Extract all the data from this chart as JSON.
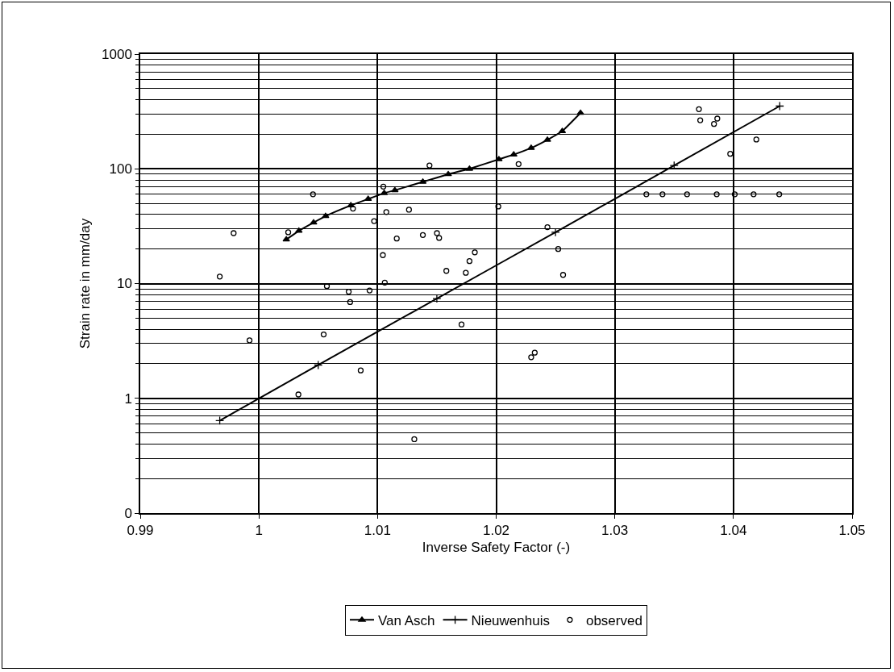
{
  "chart_data": {
    "type": "line",
    "xlabel": "Inverse Safety Factor (-)",
    "ylabel": "Strain rate in mm/day",
    "xlim": [
      0.99,
      1.05
    ],
    "xticks": [
      0.99,
      1,
      1.01,
      1.02,
      1.03,
      1.04,
      1.05
    ],
    "ylim": [
      0.1,
      1000
    ],
    "yticks": [
      {
        "value": 0.1,
        "label": "0"
      },
      1,
      10,
      100,
      1000
    ],
    "log": "y",
    "grid": true,
    "legend": "bottom",
    "series": [
      {
        "name": "Van Asch",
        "color": "#000000",
        "marker": "triangle",
        "x": [
          1.00231,
          1.00337,
          1.00461,
          1.00562,
          1.00775,
          1.00921,
          1.01056,
          1.01146,
          1.01382,
          1.01596,
          1.01775,
          1.02023,
          1.02148,
          1.02295,
          1.02432,
          1.02557,
          1.02711
        ],
        "values": [
          24.2,
          28.8,
          34,
          38.7,
          48,
          54.6,
          61.4,
          65,
          77,
          89.7,
          100,
          121,
          133,
          152,
          179,
          213,
          307
        ]
      },
      {
        "name": "Nieuwenhuis",
        "color": "#000000",
        "marker": "cross",
        "x": [
          0.9967,
          1.005,
          1.015,
          1.025,
          1.035,
          1.0439
        ],
        "values": [
          0.64,
          1.95,
          7.4,
          28,
          107,
          352
        ]
      },
      {
        "name": "observed",
        "type": "scatter",
        "color": "#000000",
        "marker": "circle",
        "x": [
          0.99787,
          0.9967,
          0.99921,
          1.00247,
          1.00456,
          1.00573,
          1.00546,
          1.00333,
          1.00757,
          1.00769,
          1.00793,
          1.00933,
          1.00858,
          1.00971,
          1.01049,
          1.01074,
          1.01045,
          1.01061,
          1.01162,
          1.01265,
          1.0131,
          1.01382,
          1.01438,
          1.01501,
          1.01519,
          1.0158,
          1.01708,
          1.01744,
          1.01775,
          1.0182,
          1.02018,
          1.02189,
          1.02432,
          1.02523,
          1.02564,
          1.02295,
          1.02325,
          1.03709,
          1.0372,
          1.03836,
          1.03864,
          1.03973,
          1.04193,
          1.03266,
          1.03402,
          1.03609,
          1.03859,
          1.04011,
          1.0417,
          1.04386
        ],
        "values": [
          27.5,
          11.5,
          3.2,
          28,
          60,
          9.5,
          3.6,
          1.08,
          8.5,
          6.9,
          45,
          8.7,
          1.75,
          35,
          70,
          42,
          17.7,
          10.2,
          24.7,
          44,
          0.44,
          26.5,
          107,
          27.5,
          25,
          12.9,
          4.4,
          12.4,
          15.7,
          18.7,
          47,
          110,
          31,
          20,
          11.9,
          2.28,
          2.5,
          331,
          265,
          246,
          274,
          135,
          180,
          60,
          60,
          60,
          60,
          60,
          60,
          60
        ]
      }
    ]
  }
}
